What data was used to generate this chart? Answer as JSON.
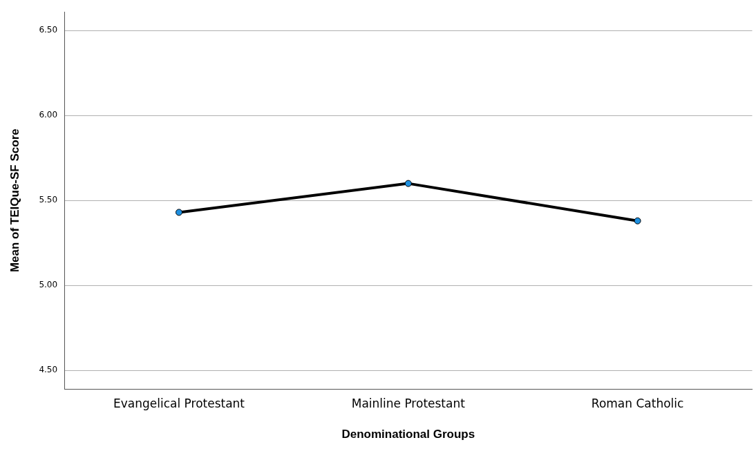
{
  "chart_data": {
    "type": "line",
    "xlabel": "Denominational Groups",
    "ylabel": "Mean of TEIQue-SF Score",
    "categories": [
      "Evangelical Protestant",
      "Mainline Protestant",
      "Roman Catholic"
    ],
    "series": [
      {
        "color": "#000000",
        "colors": [
          "#1e90e0",
          "#1e90e0",
          "#1e90e0"
        ],
        "values": [
          5.43,
          5.6,
          5.38
        ]
      }
    ],
    "ylim": [
      4.39,
      6.61
    ],
    "yticks": [
      {
        "value": 4.5,
        "label": "4.50"
      },
      {
        "value": 5,
        "label": "5.00"
      },
      {
        "value": 5.5,
        "label": "5.50"
      },
      {
        "value": 6,
        "label": "6.00"
      },
      {
        "value": 6.5,
        "label": "6.50"
      }
    ],
    "grid": "y",
    "legend": false,
    "marker": "circle",
    "line_style": "solid"
  }
}
